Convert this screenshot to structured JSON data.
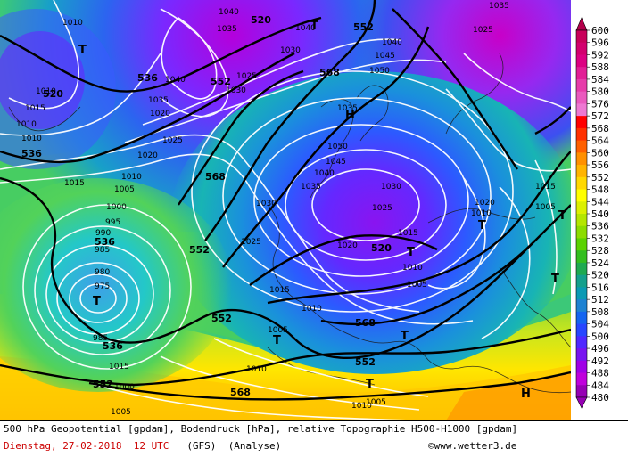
{
  "legend": {
    "unit": "gpdam",
    "values": [
      "600",
      "596",
      "592",
      "588",
      "584",
      "580",
      "576",
      "572",
      "568",
      "564",
      "560",
      "556",
      "552",
      "548",
      "544",
      "540",
      "536",
      "532",
      "528",
      "524",
      "520",
      "516",
      "512",
      "508",
      "504",
      "500",
      "496",
      "492",
      "488",
      "484",
      "480"
    ],
    "colors": [
      "#b4004a",
      "#c8005a",
      "#d2006e",
      "#dc0082",
      "#e21e96",
      "#e63caa",
      "#ea5abe",
      "#ee78d2",
      "#ff0000",
      "#ff3000",
      "#ff6000",
      "#ff9000",
      "#ffb400",
      "#ffd800",
      "#ffff00",
      "#dcf000",
      "#b4e600",
      "#8cdc00",
      "#5ad200",
      "#32be1e",
      "#1eaa50",
      "#14a08c",
      "#0a9ab4",
      "#1e82d2",
      "#1464f0",
      "#2846ff",
      "#5028ff",
      "#7814f0",
      "#a000e6",
      "#c000dc",
      "#9600b4"
    ]
  },
  "map": {
    "geopotential_labels": [
      "552",
      "520",
      "568",
      "536",
      "520",
      "552",
      "568",
      "520",
      "536",
      "552",
      "536",
      "536",
      "552",
      "568",
      "552",
      "568"
    ],
    "pressure_labels": [
      "1010",
      "1010",
      "1040",
      "1035",
      "1010",
      "1040",
      "1035",
      "1030",
      "1025",
      "1020",
      "1015",
      "1010",
      "1010",
      "1005",
      "1000",
      "995",
      "990",
      "985",
      "980",
      "975",
      "985",
      "1040",
      "1045",
      "1050",
      "1035",
      "1030",
      "1025",
      "1020",
      "1015",
      "1010",
      "1005",
      "1015",
      "1010",
      "1005",
      "1010",
      "1015",
      "1025",
      "1030",
      "1035",
      "1040",
      "1045",
      "1050",
      "1020",
      "1025",
      "1030",
      "1035",
      "1040",
      "1025",
      "1020",
      "1015",
      "1010",
      "1005",
      "1000",
      "1005",
      "1010",
      "1015",
      "1005",
      "1015"
    ],
    "center_marks": [
      "T",
      "T",
      "T",
      "T",
      "H",
      "T",
      "T",
      "T",
      "T",
      "T",
      "T",
      "H"
    ]
  },
  "footer": {
    "line1": "500 hPa Geopotential [gpdam], Bodendruck [hPa], relative Topographie H500-H1000 [gpdam]",
    "date": "Dienstag, 27-02-2018  12 UTC",
    "model": "(GFS)",
    "analysis": "(Analyse)",
    "copyright": "©www.wetter3.de"
  }
}
